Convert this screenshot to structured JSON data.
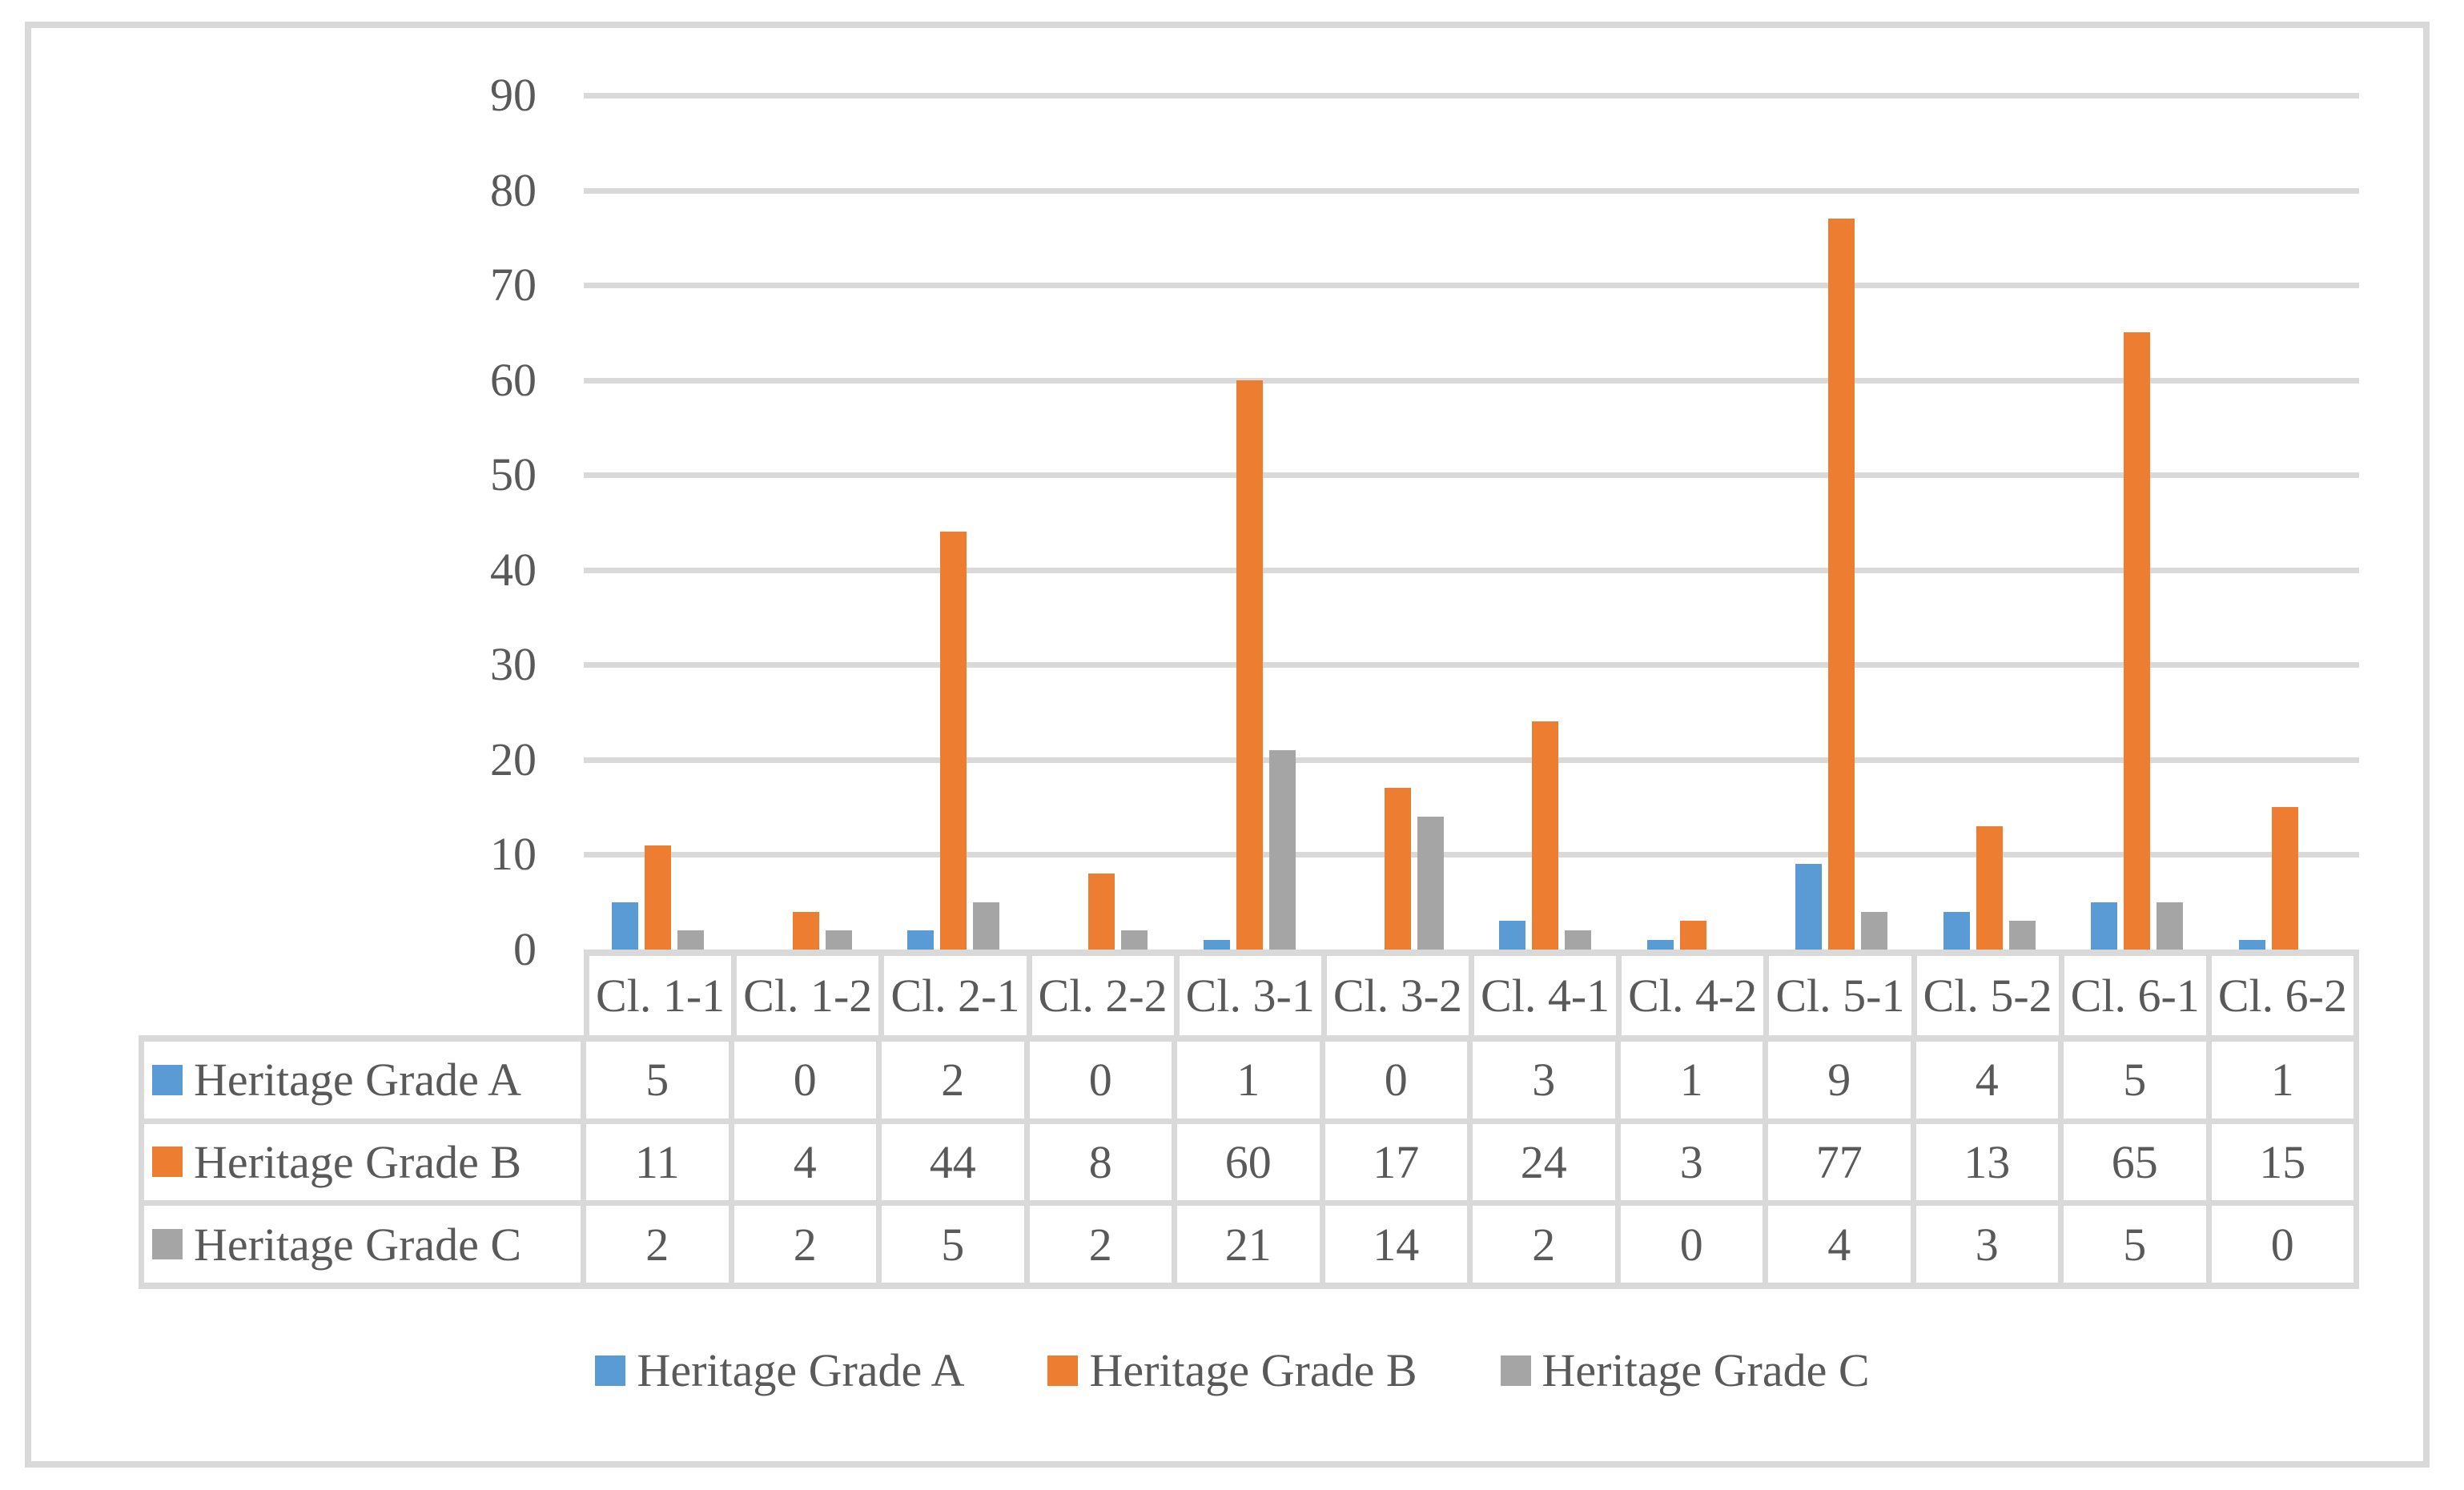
{
  "figure": {
    "frame_color": "#d9d9d9",
    "background_color": "#ffffff",
    "text_color": "#595959",
    "gridline_color": "#d9d9d9"
  },
  "chart_data": {
    "type": "bar",
    "title": "",
    "xlabel": "",
    "ylabel": "",
    "categories": [
      "Cl. 1-1",
      "Cl. 1-2",
      "Cl. 2-1",
      "Cl. 2-2",
      "Cl. 3-1",
      "Cl. 3-2",
      "Cl. 4-1",
      "Cl. 4-2",
      "Cl. 5-1",
      "Cl. 5-2",
      "Cl. 6-1",
      "Cl. 6-2"
    ],
    "series": [
      {
        "name": "Heritage Grade A",
        "color": "#5b9bd5",
        "values": [
          5,
          0,
          2,
          0,
          1,
          0,
          3,
          1,
          9,
          4,
          5,
          1
        ]
      },
      {
        "name": "Heritage Grade B",
        "color": "#ed7d31",
        "values": [
          11,
          4,
          44,
          8,
          60,
          17,
          24,
          3,
          77,
          13,
          65,
          15
        ]
      },
      {
        "name": "Heritage Grade C",
        "color": "#a5a5a5",
        "values": [
          2,
          2,
          5,
          2,
          21,
          14,
          2,
          0,
          4,
          3,
          5,
          0
        ]
      }
    ],
    "ylim": [
      0,
      90
    ],
    "yticks": [
      0,
      10,
      20,
      30,
      40,
      50,
      60,
      70,
      80,
      90
    ],
    "grid": "horizontal-gridlines-on",
    "legend_position": "bottom",
    "data_table_shown": true
  }
}
